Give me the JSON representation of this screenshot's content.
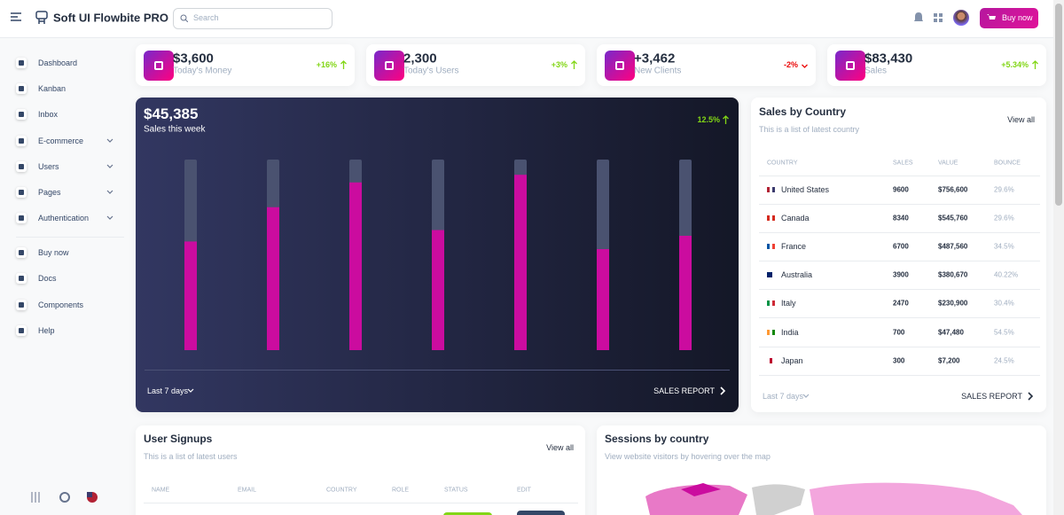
{
  "header": {
    "brand": "Soft UI Flowbite PRO",
    "search_placeholder": "Search",
    "buy_button": "Buy now"
  },
  "sidebar": {
    "items": [
      "Dashboard",
      "Kanban",
      "Inbox",
      "E-commerce",
      "Users",
      "Pages",
      "Authentication"
    ],
    "items2": [
      "Buy now",
      "Docs",
      "Components",
      "Help"
    ]
  },
  "stats": [
    {
      "value": "$3,600",
      "label": "Today's Money",
      "change": "+16%"
    },
    {
      "value": "2,300",
      "label": "Today's Users",
      "change": "+3%"
    },
    {
      "value": "+3,462",
      "label": "New Clients",
      "change": "-2%"
    },
    {
      "value": "$83,430",
      "label": "Sales",
      "change": "+5.34%"
    }
  ],
  "sales_chart": {
    "value": "$45,385",
    "label": "Sales this week",
    "change": "12.5%",
    "bars": [
      57,
      75,
      88,
      63,
      92,
      53,
      60
    ],
    "ylim": [
      0,
      100
    ],
    "range": "Last 7 days",
    "report": "SALES REPORT"
  },
  "country_table": {
    "title": "Sales by Country",
    "subtitle": "This is a list of latest country",
    "view_all": "View all",
    "columns": [
      "COUNTRY",
      "SALES",
      "VALUE",
      "BOUNCE"
    ],
    "rows": [
      [
        "United States",
        "9600",
        "$756,600",
        "29.6%"
      ],
      [
        "Canada",
        "8340",
        "$545,760",
        "29.6%"
      ],
      [
        "France",
        "6700",
        "$487,560",
        "34.5%"
      ],
      [
        "Australia",
        "3900",
        "$380,670",
        "40.22%"
      ],
      [
        "Italy",
        "2470",
        "$230,900",
        "30.4%"
      ],
      [
        "India",
        "700",
        "$47,480",
        "54.5%"
      ],
      [
        "Japan",
        "300",
        "$7,200",
        "24.5%"
      ]
    ],
    "range": "Last 7 days",
    "report": "SALES REPORT"
  },
  "signups": {
    "title": "User Signups",
    "subtitle": "This is a list of latest users",
    "view_all": "View all",
    "columns": [
      "NAME",
      "EMAIL",
      "COUNTRY",
      "ROLE",
      "STATUS",
      "EDIT"
    ]
  },
  "sessions": {
    "title": "Sessions by country",
    "subtitle": "View website visitors by hovering over the map"
  }
}
